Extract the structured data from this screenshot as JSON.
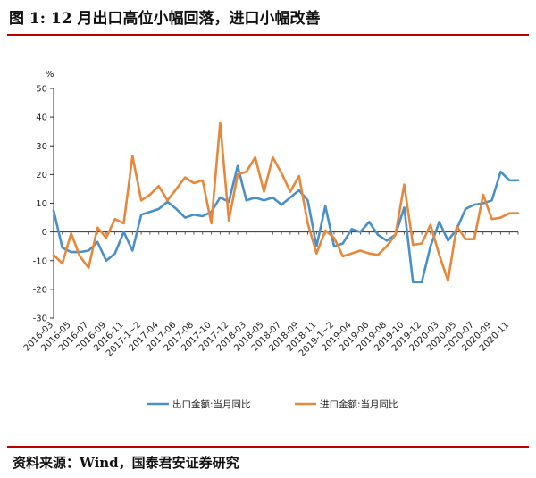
{
  "header": {
    "title": "图 1: 12 月出口高位小幅回落，进口小幅改善"
  },
  "footer": {
    "source": "资料来源：Wind，国泰君安证券研究"
  },
  "chart_data": {
    "type": "line",
    "y_unit": "%",
    "ylim": [
      -30,
      50
    ],
    "yticks": [
      -30,
      -20,
      -10,
      0,
      10,
      20,
      30,
      40,
      50
    ],
    "x_tick_labels": [
      "2016-03",
      "2016-05",
      "2016-07",
      "2016-09",
      "2016-11",
      "2017-1~2",
      "2017-04",
      "2017-06",
      "2017-08",
      "2017-10",
      "2017-12",
      "2018-03",
      "2018-05",
      "2018-07",
      "2018-09",
      "2018-11",
      "2019-1~2",
      "2019-04",
      "2019-06",
      "2019-08",
      "2019-10",
      "2019-12",
      "2020-03",
      "2020-05",
      "2020-07",
      "2020-09",
      "2020-11"
    ],
    "x": [
      "2016-03",
      "2016-04",
      "2016-05",
      "2016-06",
      "2016-07",
      "2016-08",
      "2016-09",
      "2016-10",
      "2016-11",
      "2016-12",
      "2017-1~2",
      "2017-03",
      "2017-04",
      "2017-05",
      "2017-06",
      "2017-07",
      "2017-08",
      "2017-09",
      "2017-10",
      "2017-11",
      "2017-12",
      "2018-1~2",
      "2018-03",
      "2018-04",
      "2018-05",
      "2018-06",
      "2018-07",
      "2018-08",
      "2018-09",
      "2018-10",
      "2018-11",
      "2018-12",
      "2019-1~2",
      "2019-03",
      "2019-04",
      "2019-05",
      "2019-06",
      "2019-07",
      "2019-08",
      "2019-09",
      "2019-10",
      "2019-11",
      "2019-12",
      "2020-1~2",
      "2020-03",
      "2020-04",
      "2020-05",
      "2020-06",
      "2020-07",
      "2020-08",
      "2020-09",
      "2020-10",
      "2020-11",
      "2020-12"
    ],
    "series": [
      {
        "name": "出口金额:当月同比",
        "color": "#4a90c8",
        "values": [
          7.5,
          -5.5,
          -7,
          -7,
          -6.5,
          -3.5,
          -10,
          -7.5,
          0,
          -6.5,
          6,
          7,
          8,
          10.5,
          8,
          5,
          6,
          5.5,
          7,
          12,
          10.5,
          23,
          11,
          12,
          11,
          12,
          9.5,
          12,
          14.5,
          11,
          -5,
          9,
          -5,
          -4,
          1,
          0,
          3.5,
          -1,
          -3,
          -1,
          8.5,
          -17.5,
          -17.5,
          -5,
          3.5,
          -3,
          1,
          8,
          9.5,
          10,
          11,
          21,
          18,
          18
        ]
      },
      {
        "name": "进口金额:当月同比",
        "color": "#e8873a",
        "values": [
          -8,
          -11,
          -0.5,
          -8.5,
          -12.5,
          1.5,
          -2,
          4.5,
          3,
          26.5,
          11,
          13,
          16,
          11,
          15,
          19,
          17,
          18,
          3,
          38,
          4,
          20,
          21,
          26,
          14,
          26,
          20.5,
          14,
          19.5,
          3,
          -7.5,
          0.5,
          -2,
          -8.5,
          -7.5,
          -6.5,
          -7.5,
          -8,
          -5,
          -1,
          16.5,
          -4.5,
          -4,
          2.5,
          -8,
          -17,
          2,
          -2.5,
          -2.5,
          13,
          4.5,
          5,
          6.5,
          6.5
        ]
      }
    ],
    "legend_position": "bottom",
    "grid": false
  }
}
